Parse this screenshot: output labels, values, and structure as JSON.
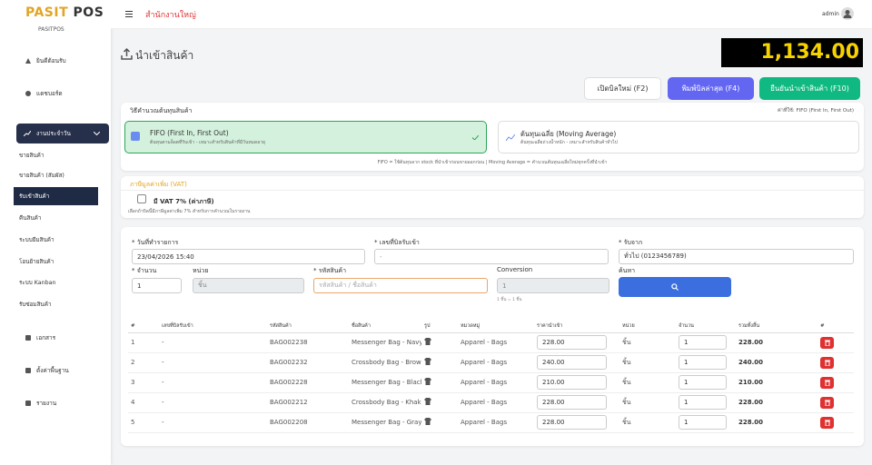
{
  "sidebar": {
    "logo": {
      "brand": "PASIT",
      "suffix": "POS"
    },
    "subtitle": "PASITPOS",
    "top_items": [
      "ยินดีต้อนรับ",
      "แดชบอร์ด"
    ],
    "group": {
      "label": "งานประจำวัน",
      "items": [
        "ขายสินค้า",
        "ขายสินค้า (สัมผัส)",
        "รับเข้าสินค้า",
        "คืนสินค้า",
        "ระบบยืมสินค้า",
        "โอนย้ายสินค้า",
        "ระบบ Kanban",
        "รับซ่อมสินค้า"
      ]
    },
    "bottom_items": [
      "เอกสาร",
      "ตั้งค่าพื้นฐาน",
      "รายงาน"
    ]
  },
  "topbar": {
    "branch": "สำนักงานใหญ่",
    "user": "admin"
  },
  "header": {
    "title": "นำเข้าสินค้า",
    "total": "1,134.00"
  },
  "buttons": {
    "new_bill": "เปิดบิลใหม่ (F2)",
    "print_last": "พิมพ์บิลล่าสุด (F4)",
    "confirm": "ยืนยันนำเข้าสินค้า (F10)"
  },
  "cost_method": {
    "title": "วิธีคำนวณต้นทุนสินค้า",
    "current": "ค่าที่ใช้: FIFO (First In, First Out)",
    "options": [
      {
        "title": "FIFO (First In, First Out)",
        "desc": "ต้นทุนตามล็อตที่รับเข้า - เหมาะสำหรับสินค้าที่มีวันหมดอายุ"
      },
      {
        "title": "ต้นทุนเฉลี่ย (Moving Average)",
        "desc": "ต้นทุนเฉลี่ยถ่วงน้ำหนัก - เหมาะสำหรับสินค้าทั่วไป"
      }
    ],
    "note": "FIFO = ใช้ต้นทุนจาก stock ที่นำเข้าก่อนขายออกก่อน | Moving Average = คำนวณต้นทุนเฉลี่ยใหม่ทุกครั้งที่นำเข้า"
  },
  "vat": {
    "title": "ภาษีมูลค่าเพิ่ม (VAT)",
    "checkbox": "มี VAT 7% (ค่าภาษี)",
    "hint": "เลือกถ้าบิลนี้มีภาษีมูลค่าเพิ่ม 7% สำหรับการคำนวณในรายงาน"
  },
  "form": {
    "date": {
      "label": "* วันที่ทำรายการ",
      "value": "23/04/2026 15:40"
    },
    "bill_no": {
      "label": "* เลขที่บิลรับเข้า",
      "placeholder": "-"
    },
    "supplier": {
      "label": "* รับจาก",
      "value": "ทั่วไป (0123456789)"
    },
    "qty": {
      "label": "* จำนวน",
      "value": "1"
    },
    "unit": {
      "label": "หน่วย",
      "value": "ชิ้น"
    },
    "code": {
      "label": "* รหัสสินค้า",
      "placeholder": "รหัสสินค้า / ชื่อสินค้า"
    },
    "conversion": {
      "label": "Conversion",
      "value": "1",
      "hint": "1 ชิ้น = 1 ชิ้น"
    },
    "search": {
      "label": "ค้นหา"
    }
  },
  "table": {
    "headers": [
      "#",
      "เลขที่บิลรับเข้า",
      "รหัสสินค้า",
      "ชื่อสินค้า",
      "รูป",
      "หมวดหมู่",
      "ราคานำเข้า",
      "หน่วย",
      "จำนวน",
      "รวมทั้งสิ้น",
      "#"
    ],
    "rows": [
      [
        "1",
        "-",
        "BAG002238",
        "Messenger Bag - Navy",
        "Apparel - Bags",
        "228.00",
        "ชิ้น",
        "1",
        "228.00"
      ],
      [
        "2",
        "-",
        "BAG002232",
        "Crossbody Bag - Brown",
        "Apparel - Bags",
        "240.00",
        "ชิ้น",
        "1",
        "240.00"
      ],
      [
        "3",
        "-",
        "BAG002228",
        "Messenger Bag - Black",
        "Apparel - Bags",
        "210.00",
        "ชิ้น",
        "1",
        "210.00"
      ],
      [
        "4",
        "-",
        "BAG002212",
        "Crossbody Bag - Khaki",
        "Apparel - Bags",
        "228.00",
        "ชิ้น",
        "1",
        "228.00"
      ],
      [
        "5",
        "-",
        "BAG002208",
        "Messenger Bag - Gray",
        "Apparel - Bags",
        "228.00",
        "ชิ้น",
        "1",
        "228.00"
      ]
    ]
  }
}
